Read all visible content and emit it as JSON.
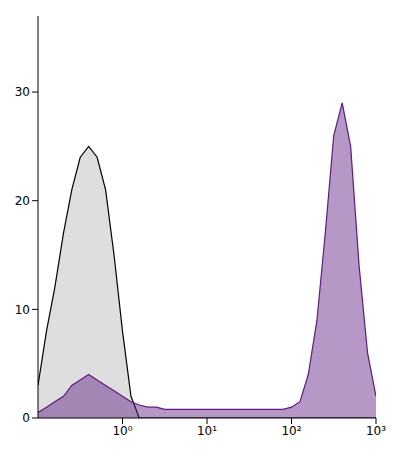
{
  "chart_data": {
    "type": "area",
    "log": "x",
    "xlim": [
      0.1,
      1000
    ],
    "xticks": [
      {
        "value": 1,
        "label": "10⁰"
      },
      {
        "value": 10,
        "label": "10¹"
      },
      {
        "value": 100,
        "label": "10²"
      },
      {
        "value": 1000,
        "label": "10³"
      }
    ],
    "ylim": [
      0,
      37
    ],
    "yticks": [
      0,
      10,
      20,
      30
    ],
    "grid": false,
    "x": [
      0.1,
      0.126,
      0.158,
      0.2,
      0.251,
      0.316,
      0.398,
      0.501,
      0.631,
      0.794,
      1,
      1.26,
      1.58,
      2,
      2.51,
      3.16,
      3.98,
      5.01,
      6.31,
      7.94,
      10,
      12.6,
      15.8,
      20,
      25.1,
      31.6,
      39.8,
      50.1,
      63.1,
      79.4,
      100,
      126,
      158,
      200,
      251,
      316,
      398,
      501,
      631,
      794,
      1000
    ],
    "series": [
      {
        "color": "#000000",
        "values": [
          3,
          8,
          12,
          17,
          21,
          24,
          25,
          24,
          21,
          15,
          8,
          2,
          0,
          0,
          0,
          0,
          0,
          0,
          0,
          0,
          0,
          0,
          0,
          0,
          0,
          0,
          0,
          0,
          0,
          0,
          0,
          0,
          0,
          0,
          0,
          0,
          0,
          0,
          0,
          0,
          0
        ]
      },
      {
        "color": "#5e1a80",
        "values": [
          0.5,
          1,
          1.5,
          2,
          3,
          3.5,
          4,
          3.5,
          3,
          2.5,
          2,
          1.5,
          1.2,
          1,
          1,
          0.8,
          0.8,
          0.8,
          0.8,
          0.8,
          0.8,
          0.8,
          0.8,
          0.8,
          0.8,
          0.8,
          0.8,
          0.8,
          0.8,
          0.8,
          1,
          1.5,
          4,
          9,
          17,
          26,
          29,
          25,
          14,
          6,
          2
        ]
      }
    ]
  }
}
